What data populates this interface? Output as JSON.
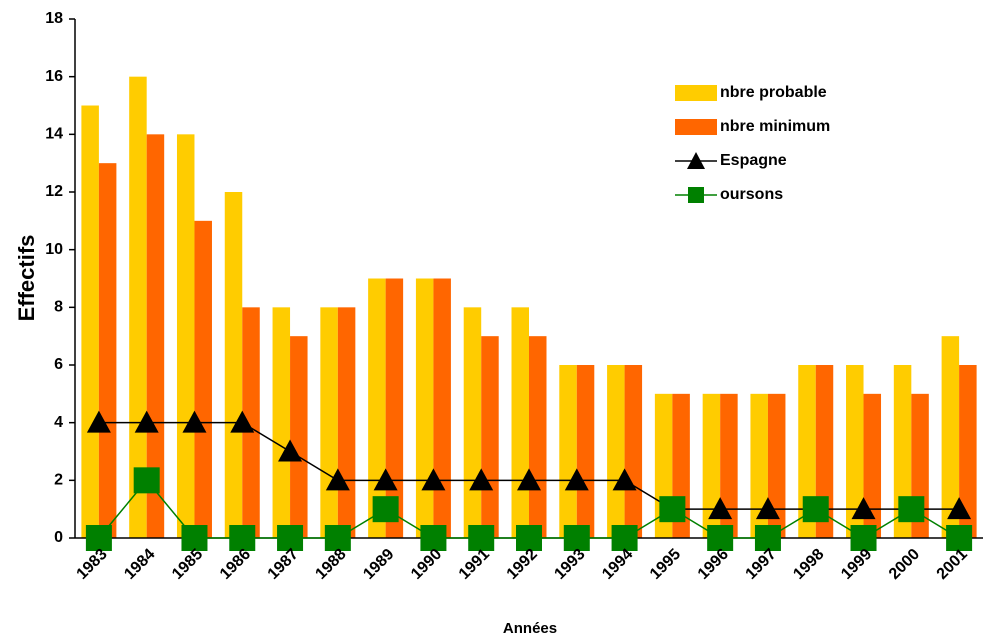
{
  "chart_data": {
    "type": "bar",
    "x_label": "Années",
    "y_label": "Effectifs",
    "categories": [
      "1983",
      "1984",
      "1985",
      "1986",
      "1987",
      "1988",
      "1989",
      "1990",
      "1991",
      "1992",
      "1993",
      "1994",
      "1995",
      "1996",
      "1997",
      "1998",
      "1999",
      "2000",
      "2001"
    ],
    "series": [
      {
        "name": "nbre probable",
        "type": "bar",
        "color": "#FFCC00",
        "values": [
          15,
          16,
          14,
          12,
          8,
          8,
          9,
          9,
          8,
          8,
          6,
          6,
          5,
          5,
          5,
          6,
          6,
          6,
          7
        ]
      },
      {
        "name": "nbre minimum",
        "type": "bar",
        "color": "#FF6600",
        "values": [
          13,
          14,
          11,
          8,
          7,
          8,
          9,
          9,
          7,
          7,
          6,
          6,
          5,
          5,
          5,
          6,
          5,
          5,
          6
        ]
      },
      {
        "name": "Espagne",
        "type": "line",
        "marker": "triangle",
        "color": "#000000",
        "values": [
          4,
          4,
          4,
          4,
          3,
          2,
          2,
          2,
          2,
          2,
          2,
          2,
          1,
          1,
          1,
          1,
          1,
          1,
          1
        ]
      },
      {
        "name": "oursons",
        "type": "line",
        "marker": "square",
        "color": "#008000",
        "values": [
          0,
          2,
          0,
          0,
          0,
          0,
          1,
          0,
          0,
          0,
          0,
          0,
          1,
          0,
          0,
          1,
          0,
          1,
          0
        ]
      }
    ],
    "ylim": [
      0,
      18
    ],
    "yticks": [
      0,
      2,
      4,
      6,
      8,
      10,
      12,
      14,
      16,
      18
    ],
    "grid": false,
    "legend": "upper right"
  }
}
